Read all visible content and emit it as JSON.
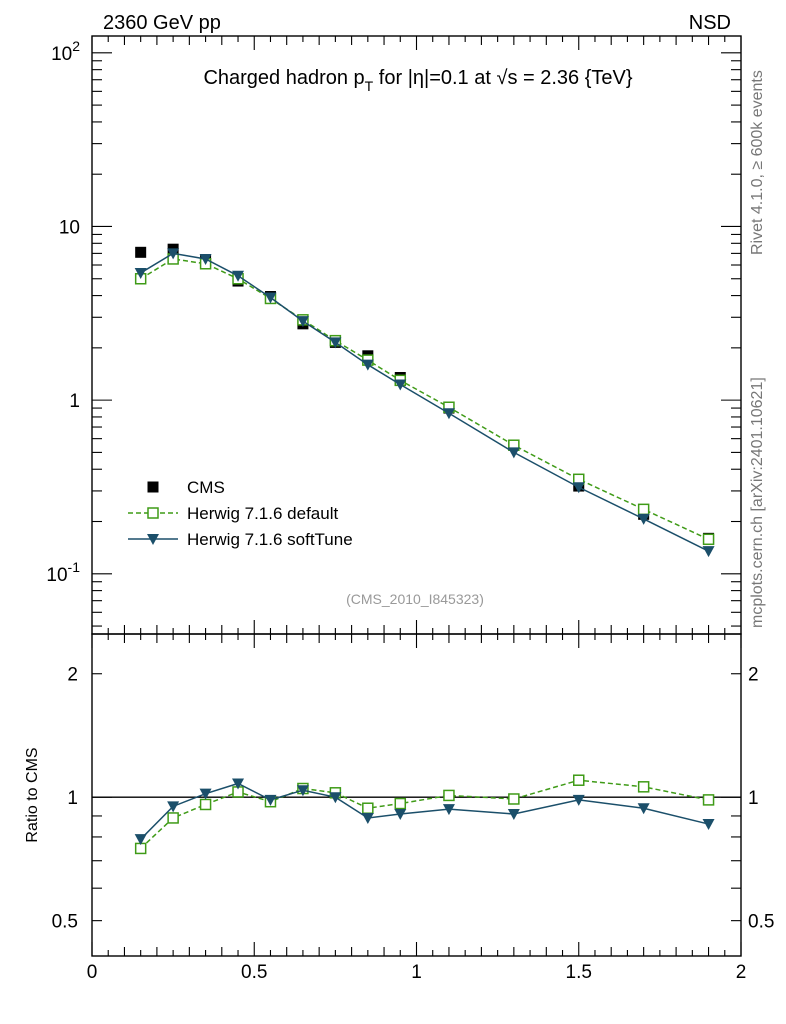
{
  "header": {
    "left_label": "2360 GeV pp",
    "right_label": "NSD",
    "side_label_top": "Rivet 4.1.0, ≥ 600k events",
    "side_label_bottom": "mcplots.cern.ch [arXiv:2401.10621]",
    "analysis_id": "(CMS_2010_I845323)"
  },
  "colors": {
    "cms": "#000000",
    "herwig_default": "#3f9b17",
    "herwig_softtune": "#1b4f6a"
  },
  "chart_data": [
    {
      "type": "line",
      "panel": "main",
      "title": "Charged hadron p_T for |η|=0.1 at √s = 2.36 {TeV}",
      "xlabel": "",
      "ylabel": "",
      "yscale": "log",
      "xlim": [
        0,
        2
      ],
      "ylim": [
        0.045,
        125
      ],
      "y_tick_labels": [
        "10^-1",
        "1",
        "10",
        "10^2"
      ],
      "legend_position": "bottom-left",
      "x": [
        0.15,
        0.25,
        0.35,
        0.45,
        0.55,
        0.65,
        0.75,
        0.85,
        0.95,
        1.1,
        1.3,
        1.5,
        1.7,
        1.9
      ],
      "series": [
        {
          "name": "CMS",
          "style": "square-filled",
          "values": [
            7.1,
            7.4,
            6.4,
            4.85,
            3.95,
            2.75,
            2.15,
            1.8,
            1.35,
            0.9,
            0.55,
            0.32,
            0.22,
            0.16
          ]
        },
        {
          "name": "Herwig 7.1.6 default",
          "style": "square-open-dashed",
          "values": [
            5.0,
            6.5,
            6.1,
            5.0,
            3.85,
            2.9,
            2.2,
            1.7,
            1.3,
            0.91,
            0.55,
            0.35,
            0.235,
            0.158
          ]
        },
        {
          "name": "Herwig 7.1.6 softTune",
          "style": "triangle-down-solid",
          "values": [
            5.4,
            7.0,
            6.5,
            5.2,
            3.9,
            2.85,
            2.15,
            1.6,
            1.23,
            0.84,
            0.5,
            0.315,
            0.207,
            0.135
          ]
        }
      ]
    },
    {
      "type": "line",
      "panel": "ratio",
      "xlabel": "",
      "ylabel": "Ratio to CMS",
      "yscale": "log",
      "xlim": [
        0,
        2
      ],
      "ylim": [
        0.41,
        2.5
      ],
      "x_tick_labels": [
        "0",
        "0.5",
        "1",
        "1.5",
        "2"
      ],
      "y_tick_labels": [
        "0.5",
        "1",
        "2"
      ],
      "reference_line": 1,
      "x": [
        0.15,
        0.25,
        0.35,
        0.45,
        0.55,
        0.65,
        0.75,
        0.85,
        0.95,
        1.1,
        1.3,
        1.5,
        1.7,
        1.9
      ],
      "series": [
        {
          "name": "Herwig 7.1.6 default",
          "style": "square-open-dashed",
          "values": [
            0.75,
            0.89,
            0.96,
            1.03,
            0.975,
            1.05,
            1.025,
            0.94,
            0.965,
            1.01,
            0.99,
            1.1,
            1.06,
            0.985
          ]
        },
        {
          "name": "Herwig 7.1.6 softTune",
          "style": "triangle-down-solid",
          "values": [
            0.79,
            0.95,
            1.02,
            1.08,
            0.985,
            1.04,
            1.0,
            0.89,
            0.91,
            0.935,
            0.91,
            0.985,
            0.94,
            0.86
          ]
        }
      ]
    }
  ]
}
